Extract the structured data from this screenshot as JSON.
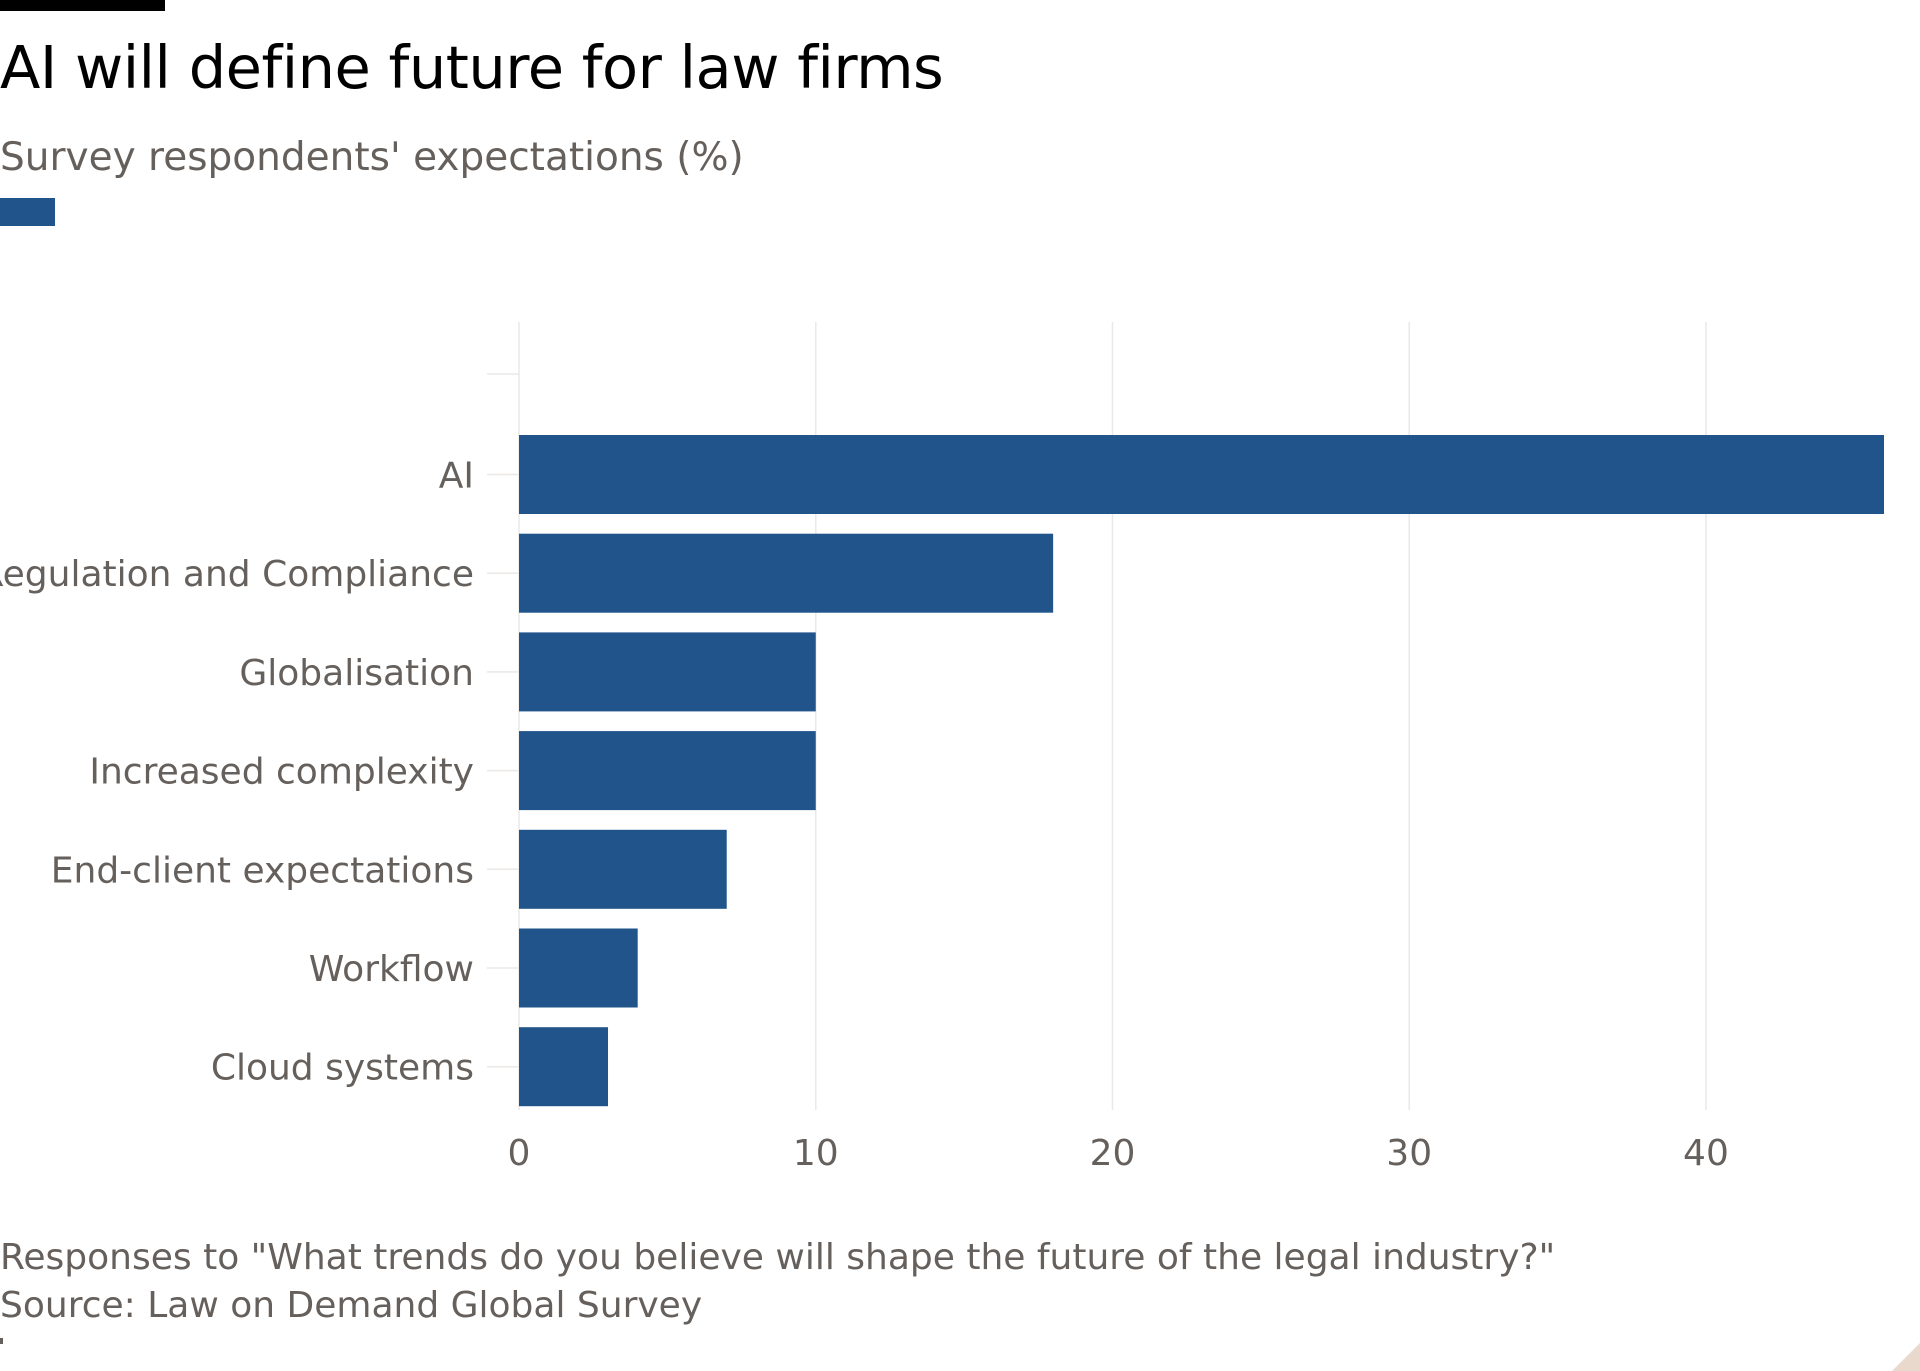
{
  "header": {
    "title": "AI will define future for law firms",
    "subtitle": "Survey respondents' expectations (%)"
  },
  "colors": {
    "bar": "#20548a",
    "grid": "#ebe8e5",
    "text": "#66605c",
    "title": "#000000"
  },
  "chart_data": {
    "type": "bar",
    "orientation": "horizontal",
    "title": "AI will define future for law firms",
    "subtitle": "Survey respondents' expectations (%)",
    "categories": [
      "AI",
      "Regulation and Compliance",
      "Globalisation",
      "Increased complexity",
      "End-client expectations",
      "Workflow",
      "Cloud systems"
    ],
    "values": [
      46,
      18,
      10,
      10,
      7,
      4,
      3
    ],
    "xlim": [
      0,
      46
    ],
    "xticks": [
      0,
      10,
      20,
      30,
      40
    ],
    "xtick_labels": [
      "0",
      "10",
      "20",
      "30",
      "40"
    ],
    "grid": true,
    "legend": "top-left swatch, no label"
  },
  "footer": {
    "note": "Responses to \"What trends do you believe will shape the future of the legal industry?\"",
    "source": "Source: Law on Demand Global Survey"
  }
}
